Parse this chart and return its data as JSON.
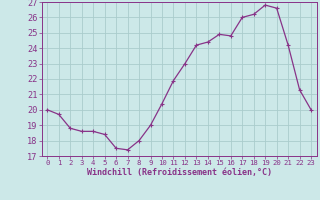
{
  "x": [
    0,
    1,
    2,
    3,
    4,
    5,
    6,
    7,
    8,
    9,
    10,
    11,
    12,
    13,
    14,
    15,
    16,
    17,
    18,
    19,
    20,
    21,
    22,
    23
  ],
  "y": [
    20.0,
    19.7,
    18.8,
    18.6,
    18.6,
    18.4,
    17.5,
    17.4,
    18.0,
    19.0,
    20.4,
    21.9,
    23.0,
    24.2,
    24.4,
    24.9,
    24.8,
    26.0,
    26.2,
    26.8,
    26.6,
    24.2,
    21.3,
    20.0
  ],
  "line_color": "#883388",
  "marker": "P",
  "marker_size": 2.5,
  "bg_color": "#cce8e8",
  "grid_color": "#aacccc",
  "xlabel": "Windchill (Refroidissement éolien,°C)",
  "xlim": [
    -0.5,
    23.5
  ],
  "ylim": [
    17,
    27
  ],
  "yticks": [
    17,
    18,
    19,
    20,
    21,
    22,
    23,
    24,
    25,
    26,
    27
  ],
  "xticks": [
    0,
    1,
    2,
    3,
    4,
    5,
    6,
    7,
    8,
    9,
    10,
    11,
    12,
    13,
    14,
    15,
    16,
    17,
    18,
    19,
    20,
    21,
    22,
    23
  ],
  "tick_color": "#883388",
  "label_color": "#883388",
  "spine_color": "#883388",
  "xlabel_fontsize": 6.0,
  "xtick_fontsize": 5.2,
  "ytick_fontsize": 6.2
}
